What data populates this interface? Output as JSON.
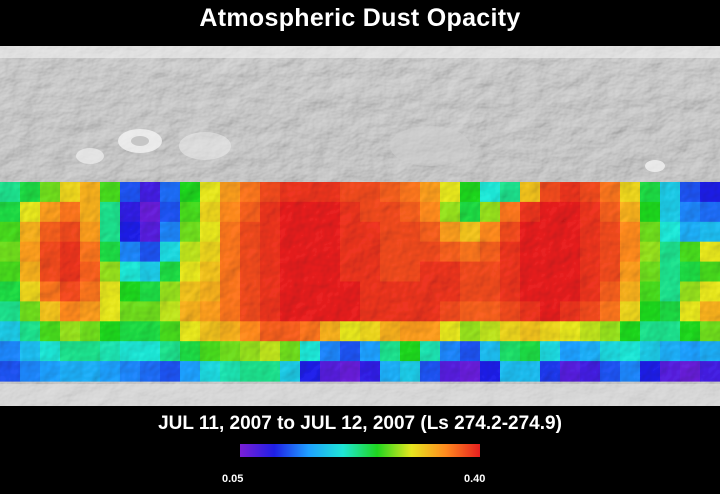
{
  "title": "Atmospheric Dust Opacity",
  "date_range": "JUL 11, 2007 to JUL 12, 2007 (Ls 274.2-274.9)",
  "colorbar": {
    "min_label": "0.05",
    "max_label": "0.40",
    "min_value": 0.05,
    "max_value": 0.4,
    "colors": [
      "#7a1fd6",
      "#1f1fe6",
      "#1fa0ff",
      "#1fe6d6",
      "#1fd61f",
      "#e6e61f",
      "#ff8a1f",
      "#e61f1f"
    ]
  },
  "map": {
    "type": "heatmap",
    "background": "grayscale shaded relief of planet surface",
    "data_band": "dust opacity overlay covering mid latitudes",
    "cells": [
      [
        0.22,
        0.24,
        0.27,
        0.31,
        0.33,
        0.26,
        0.12,
        0.08,
        0.13,
        0.25,
        0.3,
        0.34,
        0.36,
        0.38,
        0.39,
        0.39,
        0.39,
        0.38,
        0.38,
        0.37,
        0.36,
        0.34,
        0.3,
        0.25,
        0.2,
        0.22,
        0.32,
        0.38,
        0.39,
        0.38,
        0.36,
        0.31,
        0.24,
        0.18,
        0.12,
        0.1
      ],
      [
        0.24,
        0.3,
        0.34,
        0.36,
        0.33,
        0.22,
        0.09,
        0.06,
        0.12,
        0.26,
        0.31,
        0.35,
        0.37,
        0.39,
        0.4,
        0.4,
        0.4,
        0.39,
        0.38,
        0.38,
        0.37,
        0.35,
        0.28,
        0.24,
        0.28,
        0.36,
        0.39,
        0.4,
        0.4,
        0.39,
        0.37,
        0.33,
        0.25,
        0.18,
        0.14,
        0.13
      ],
      [
        0.26,
        0.33,
        0.37,
        0.38,
        0.34,
        0.22,
        0.1,
        0.07,
        0.14,
        0.27,
        0.3,
        0.36,
        0.38,
        0.39,
        0.4,
        0.4,
        0.4,
        0.39,
        0.39,
        0.38,
        0.38,
        0.37,
        0.34,
        0.32,
        0.35,
        0.38,
        0.4,
        0.4,
        0.4,
        0.39,
        0.38,
        0.35,
        0.27,
        0.2,
        0.16,
        0.17
      ],
      [
        0.27,
        0.34,
        0.38,
        0.39,
        0.36,
        0.24,
        0.14,
        0.12,
        0.19,
        0.29,
        0.31,
        0.36,
        0.38,
        0.39,
        0.4,
        0.4,
        0.4,
        0.39,
        0.39,
        0.38,
        0.38,
        0.38,
        0.37,
        0.36,
        0.37,
        0.39,
        0.4,
        0.4,
        0.4,
        0.39,
        0.38,
        0.35,
        0.28,
        0.22,
        0.26,
        0.3
      ],
      [
        0.26,
        0.33,
        0.38,
        0.39,
        0.37,
        0.28,
        0.2,
        0.18,
        0.24,
        0.3,
        0.32,
        0.36,
        0.38,
        0.39,
        0.4,
        0.4,
        0.4,
        0.39,
        0.39,
        0.38,
        0.38,
        0.39,
        0.39,
        0.38,
        0.38,
        0.39,
        0.4,
        0.4,
        0.4,
        0.39,
        0.38,
        0.34,
        0.27,
        0.22,
        0.24,
        0.26
      ],
      [
        0.24,
        0.31,
        0.36,
        0.38,
        0.36,
        0.3,
        0.25,
        0.24,
        0.28,
        0.32,
        0.33,
        0.36,
        0.38,
        0.39,
        0.4,
        0.4,
        0.4,
        0.4,
        0.39,
        0.39,
        0.39,
        0.39,
        0.39,
        0.38,
        0.38,
        0.39,
        0.4,
        0.4,
        0.4,
        0.39,
        0.37,
        0.33,
        0.26,
        0.22,
        0.28,
        0.3
      ],
      [
        0.22,
        0.27,
        0.32,
        0.35,
        0.34,
        0.3,
        0.27,
        0.27,
        0.29,
        0.33,
        0.34,
        0.36,
        0.38,
        0.39,
        0.4,
        0.4,
        0.4,
        0.4,
        0.39,
        0.39,
        0.39,
        0.39,
        0.38,
        0.37,
        0.37,
        0.38,
        0.39,
        0.4,
        0.39,
        0.38,
        0.36,
        0.31,
        0.25,
        0.24,
        0.3,
        0.33
      ],
      [
        0.18,
        0.22,
        0.26,
        0.28,
        0.27,
        0.25,
        0.24,
        0.24,
        0.26,
        0.3,
        0.32,
        0.33,
        0.35,
        0.37,
        0.37,
        0.36,
        0.33,
        0.3,
        0.31,
        0.33,
        0.34,
        0.34,
        0.3,
        0.28,
        0.29,
        0.31,
        0.32,
        0.31,
        0.3,
        0.29,
        0.28,
        0.25,
        0.22,
        0.22,
        0.25,
        0.27
      ],
      [
        0.14,
        0.17,
        0.2,
        0.22,
        0.22,
        0.21,
        0.2,
        0.2,
        0.22,
        0.24,
        0.26,
        0.27,
        0.28,
        0.29,
        0.27,
        0.2,
        0.14,
        0.12,
        0.15,
        0.22,
        0.25,
        0.21,
        0.14,
        0.12,
        0.17,
        0.23,
        0.24,
        0.19,
        0.15,
        0.16,
        0.19,
        0.2,
        0.18,
        0.16,
        0.15,
        0.16
      ],
      [
        0.12,
        0.14,
        0.15,
        0.16,
        0.16,
        0.15,
        0.14,
        0.13,
        0.12,
        0.15,
        0.19,
        0.21,
        0.22,
        0.22,
        0.18,
        0.1,
        0.07,
        0.06,
        0.09,
        0.16,
        0.18,
        0.12,
        0.07,
        0.06,
        0.1,
        0.17,
        0.17,
        0.11,
        0.07,
        0.08,
        0.12,
        0.14,
        0.1,
        0.07,
        0.06,
        0.08
      ]
    ]
  }
}
